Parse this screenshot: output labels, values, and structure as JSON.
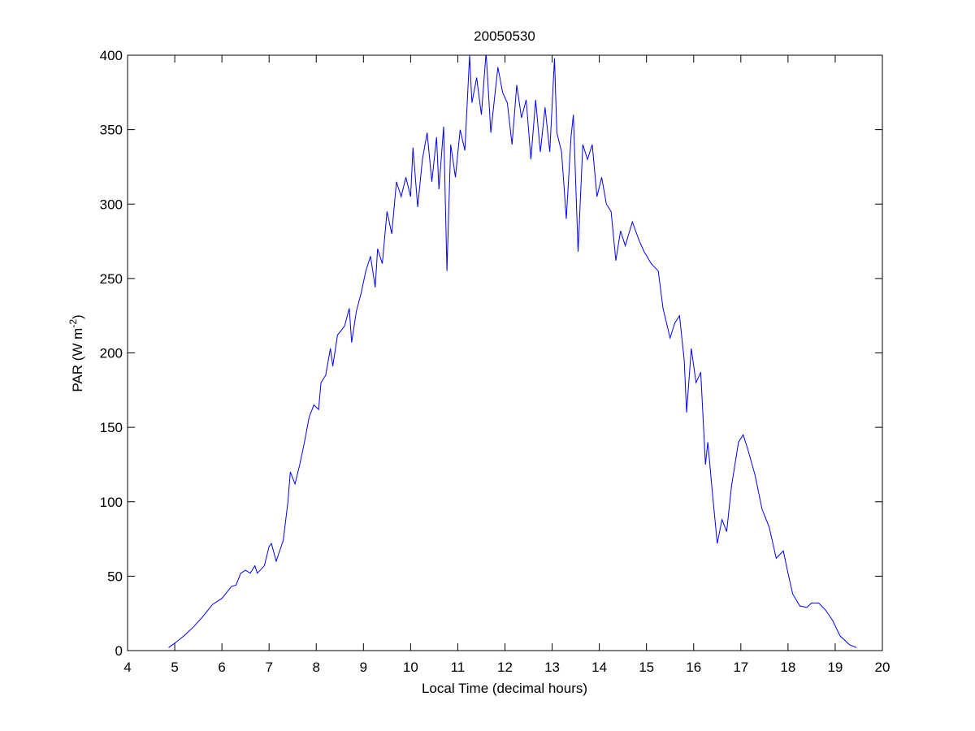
{
  "chart_data": {
    "type": "line",
    "title": "20050530",
    "xlabel": "Local Time (decimal hours)",
    "ylabel": [
      "PAR (W m",
      "-2",
      ")"
    ],
    "xlim": [
      4,
      20
    ],
    "xticks": [
      4,
      5,
      6,
      7,
      8,
      9,
      10,
      11,
      12,
      13,
      14,
      15,
      16,
      17,
      18,
      19,
      20
    ],
    "ylim": [
      0,
      400
    ],
    "yticks": [
      0,
      50,
      100,
      150,
      200,
      250,
      300,
      350,
      400
    ],
    "series": [
      {
        "color": "#0000ff",
        "x": [
          4.87,
          5.0,
          5.2,
          5.4,
          5.6,
          5.8,
          6.0,
          6.2,
          6.3,
          6.4,
          6.5,
          6.6,
          6.7,
          6.75,
          6.9,
          7.0,
          7.05,
          7.15,
          7.3,
          7.4,
          7.45,
          7.55,
          7.65,
          7.75,
          7.85,
          7.95,
          8.05,
          8.1,
          8.2,
          8.3,
          8.35,
          8.45,
          8.6,
          8.7,
          8.75,
          8.85,
          8.95,
          9.05,
          9.15,
          9.25,
          9.3,
          9.4,
          9.5,
          9.6,
          9.7,
          9.8,
          9.9,
          10.0,
          10.05,
          10.15,
          10.25,
          10.35,
          10.45,
          10.55,
          10.6,
          10.7,
          10.77,
          10.85,
          10.95,
          11.05,
          11.15,
          11.25,
          11.3,
          11.4,
          11.5,
          11.6,
          11.7,
          11.85,
          11.95,
          12.05,
          12.15,
          12.25,
          12.35,
          12.45,
          12.55,
          12.65,
          12.75,
          12.85,
          12.95,
          13.05,
          13.1,
          13.2,
          13.3,
          13.4,
          13.45,
          13.55,
          13.65,
          13.75,
          13.85,
          13.95,
          14.05,
          14.15,
          14.25,
          14.35,
          14.45,
          14.55,
          14.7,
          14.85,
          14.95,
          15.1,
          15.25,
          15.35,
          15.5,
          15.6,
          15.7,
          15.8,
          15.85,
          15.95,
          16.05,
          16.15,
          16.25,
          16.3,
          16.4,
          16.5,
          16.6,
          16.7,
          16.8,
          16.95,
          17.05,
          17.15,
          17.3,
          17.45,
          17.6,
          17.75,
          17.9,
          18.0,
          18.1,
          18.25,
          18.4,
          18.5,
          18.65,
          18.8,
          18.95,
          19.1,
          19.3,
          19.45
        ],
        "values": [
          2,
          5,
          10,
          16,
          23,
          31,
          35,
          43,
          44,
          52,
          54,
          52,
          57,
          52,
          57,
          70,
          72,
          60,
          74,
          100,
          120,
          112,
          125,
          140,
          157,
          165,
          162,
          180,
          185,
          203,
          191,
          212,
          218,
          230,
          207,
          228,
          240,
          255,
          265,
          244,
          270,
          260,
          295,
          280,
          315,
          305,
          318,
          305,
          338,
          298,
          330,
          348,
          315,
          345,
          310,
          352,
          255,
          340,
          318,
          350,
          336,
          400,
          368,
          385,
          360,
          402,
          348,
          392,
          375,
          368,
          340,
          380,
          358,
          370,
          330,
          370,
          335,
          365,
          335,
          398,
          348,
          335,
          290,
          345,
          360,
          268,
          340,
          330,
          340,
          305,
          318,
          300,
          295,
          262,
          282,
          272,
          288,
          275,
          268,
          260,
          255,
          230,
          210,
          220,
          225,
          195,
          160,
          203,
          180,
          187,
          125,
          140,
          105,
          72,
          88,
          80,
          110,
          140,
          145,
          135,
          118,
          95,
          83,
          62,
          67,
          52,
          38,
          30,
          29,
          32,
          32,
          27,
          20,
          10,
          4,
          2
        ]
      }
    ]
  }
}
